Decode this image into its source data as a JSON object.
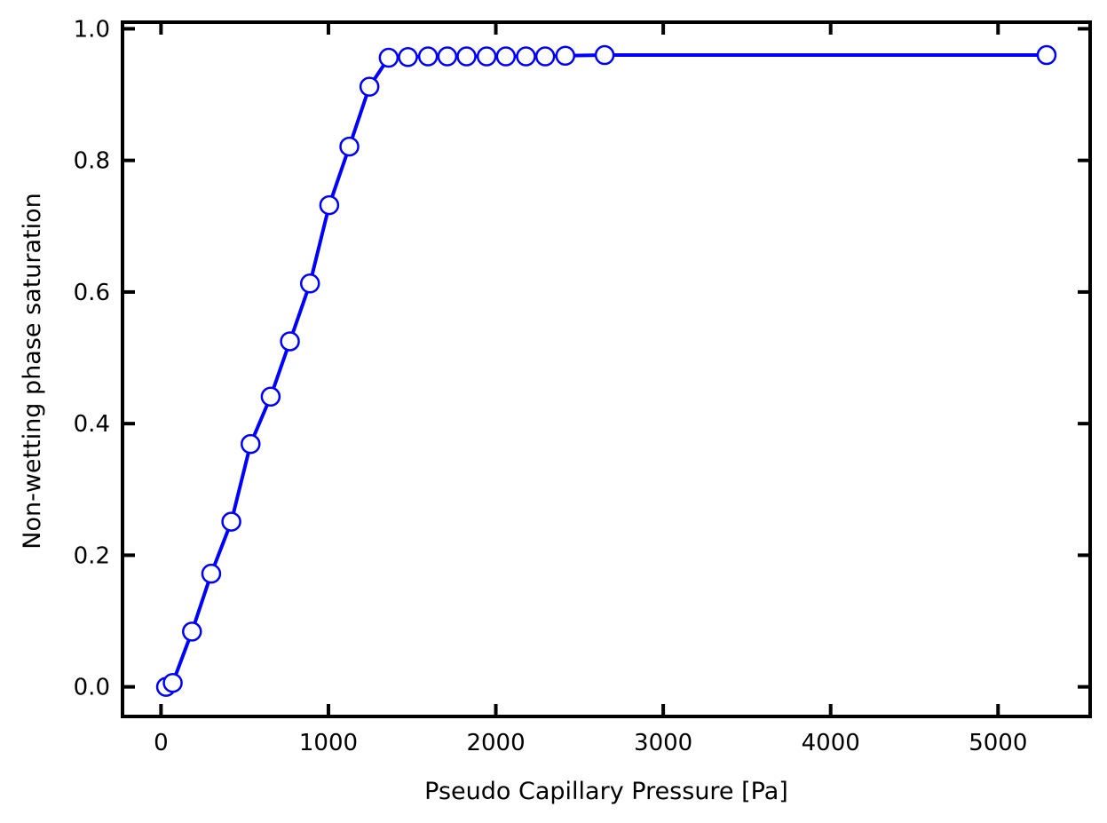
{
  "chart_data": {
    "type": "line",
    "title": "",
    "xlabel": "Pseudo Capillary Pressure [Pa]",
    "ylabel": "Non-wetting phase saturation",
    "xlim": [
      -230,
      5550
    ],
    "ylim": [
      -0.045,
      1.01
    ],
    "x_ticks": [
      0,
      1000,
      2000,
      3000,
      4000,
      5000
    ],
    "x_tick_labels": [
      "0",
      "1000",
      "2000",
      "3000",
      "4000",
      "5000"
    ],
    "y_ticks": [
      0.0,
      0.2,
      0.4,
      0.6,
      0.8,
      1.0
    ],
    "y_tick_labels": [
      "0.0",
      "0.2",
      "0.4",
      "0.6",
      "0.8",
      "1.0"
    ],
    "grid": false,
    "series": [
      {
        "name": "saturation",
        "color": "#0000ff",
        "marker": "circle",
        "marker_face": "#ffffff",
        "x": [
          30,
          70,
          185,
          300,
          420,
          535,
          655,
          770,
          890,
          1005,
          1125,
          1245,
          1360,
          1475,
          1595,
          1710,
          1825,
          1945,
          2060,
          2180,
          2295,
          2415,
          2650,
          5290
        ],
        "y": [
          0.0,
          0.006,
          0.084,
          0.172,
          0.251,
          0.369,
          0.441,
          0.525,
          0.613,
          0.732,
          0.821,
          0.912,
          0.956,
          0.957,
          0.958,
          0.958,
          0.958,
          0.958,
          0.958,
          0.958,
          0.958,
          0.959,
          0.96,
          0.96
        ]
      }
    ]
  }
}
